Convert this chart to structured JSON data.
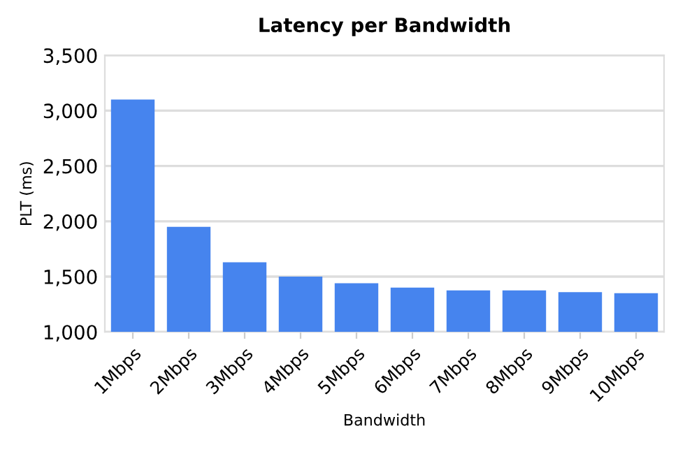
{
  "chart_data": {
    "type": "bar",
    "title": "Latency per Bandwidth",
    "xlabel": "Bandwidth",
    "ylabel": "PLT (ms)",
    "categories": [
      "1Mbps",
      "2Mbps",
      "3Mbps",
      "4Mbps",
      "5Mbps",
      "6Mbps",
      "7Mbps",
      "8Mbps",
      "9Mbps",
      "10Mbps"
    ],
    "values": [
      3100,
      1950,
      1630,
      1500,
      1440,
      1400,
      1375,
      1375,
      1360,
      1350
    ],
    "color": "#4684ee",
    "ylim": [
      1000,
      3500
    ],
    "yticks": [
      {
        "value": 1000,
        "label": "1,000"
      },
      {
        "value": 1500,
        "label": "1,500"
      },
      {
        "value": 2000,
        "label": "2,000"
      },
      {
        "value": 2500,
        "label": "2,500"
      },
      {
        "value": 3000,
        "label": "3,000"
      },
      {
        "value": 3500,
        "label": "3,500"
      }
    ],
    "grid": "y"
  }
}
